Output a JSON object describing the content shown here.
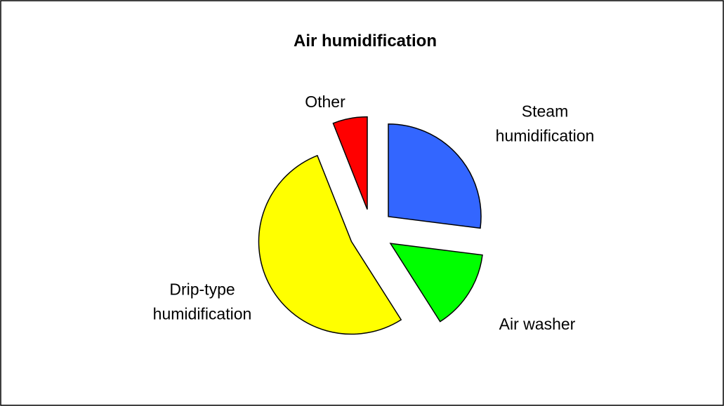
{
  "chart_data": {
    "type": "pie",
    "title": "Air humidification",
    "categories": [
      "Steam\nhumidification",
      "Air washer",
      "Drip-type\nhumidification",
      "Other"
    ],
    "values": [
      27,
      14,
      53,
      6
    ],
    "colors": [
      "#3366ff",
      "#00ff00",
      "#ffff00",
      "#ff0000"
    ],
    "exploded": true
  }
}
